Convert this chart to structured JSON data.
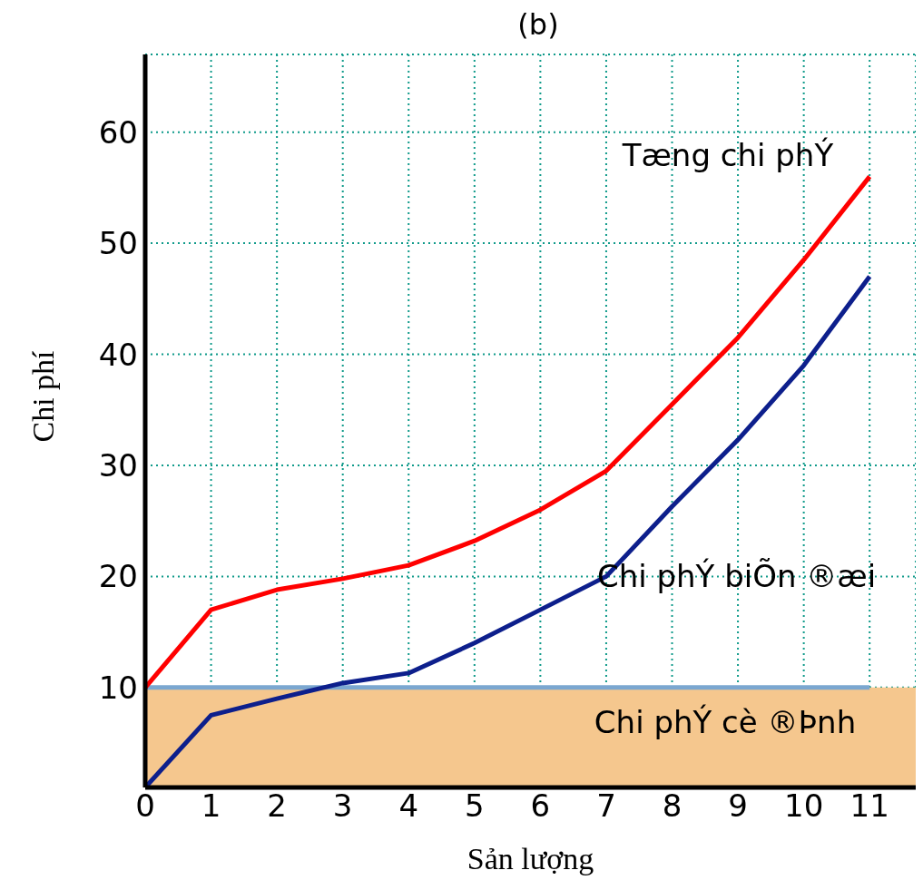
{
  "chart_data": {
    "type": "line",
    "title": "(b)",
    "xlabel": "Sản lượng",
    "ylabel": "Chi phí",
    "x": [
      0,
      1,
      2,
      3,
      4,
      5,
      6,
      7,
      8,
      9,
      10,
      11
    ],
    "series": [
      {
        "name": "Tæng chi phÝ",
        "color": "#ff0000",
        "values": [
          10,
          17,
          18.8,
          19.8,
          21,
          23.2,
          26,
          29.5,
          35.5,
          41.5,
          48.5,
          56
        ]
      },
      {
        "name": "Chi phÝ biÕn ®æi",
        "color": "#0d1f8c",
        "values": [
          1,
          7.5,
          9,
          10.4,
          11.3,
          14,
          17,
          20,
          26.3,
          32.3,
          39,
          47
        ]
      },
      {
        "name": "Chi phÝ cè ®Þnh",
        "color": "#7ba7d0",
        "values": [
          10,
          10,
          10,
          10,
          10,
          10,
          10,
          10,
          10,
          10,
          10,
          10
        ]
      }
    ],
    "bands": [
      {
        "axis": "y",
        "from": 1,
        "to": 10,
        "color": "#f5c78e"
      }
    ],
    "xlim": [
      0,
      11.7
    ],
    "xticks": [
      0,
      1,
      2,
      3,
      4,
      5,
      6,
      7,
      8,
      9,
      10,
      11
    ],
    "ylim": [
      1,
      67
    ],
    "yticks": [
      10,
      20,
      30,
      40,
      50,
      60
    ],
    "grid": true,
    "legend": false,
    "marker": "none",
    "line_style": "solid"
  }
}
